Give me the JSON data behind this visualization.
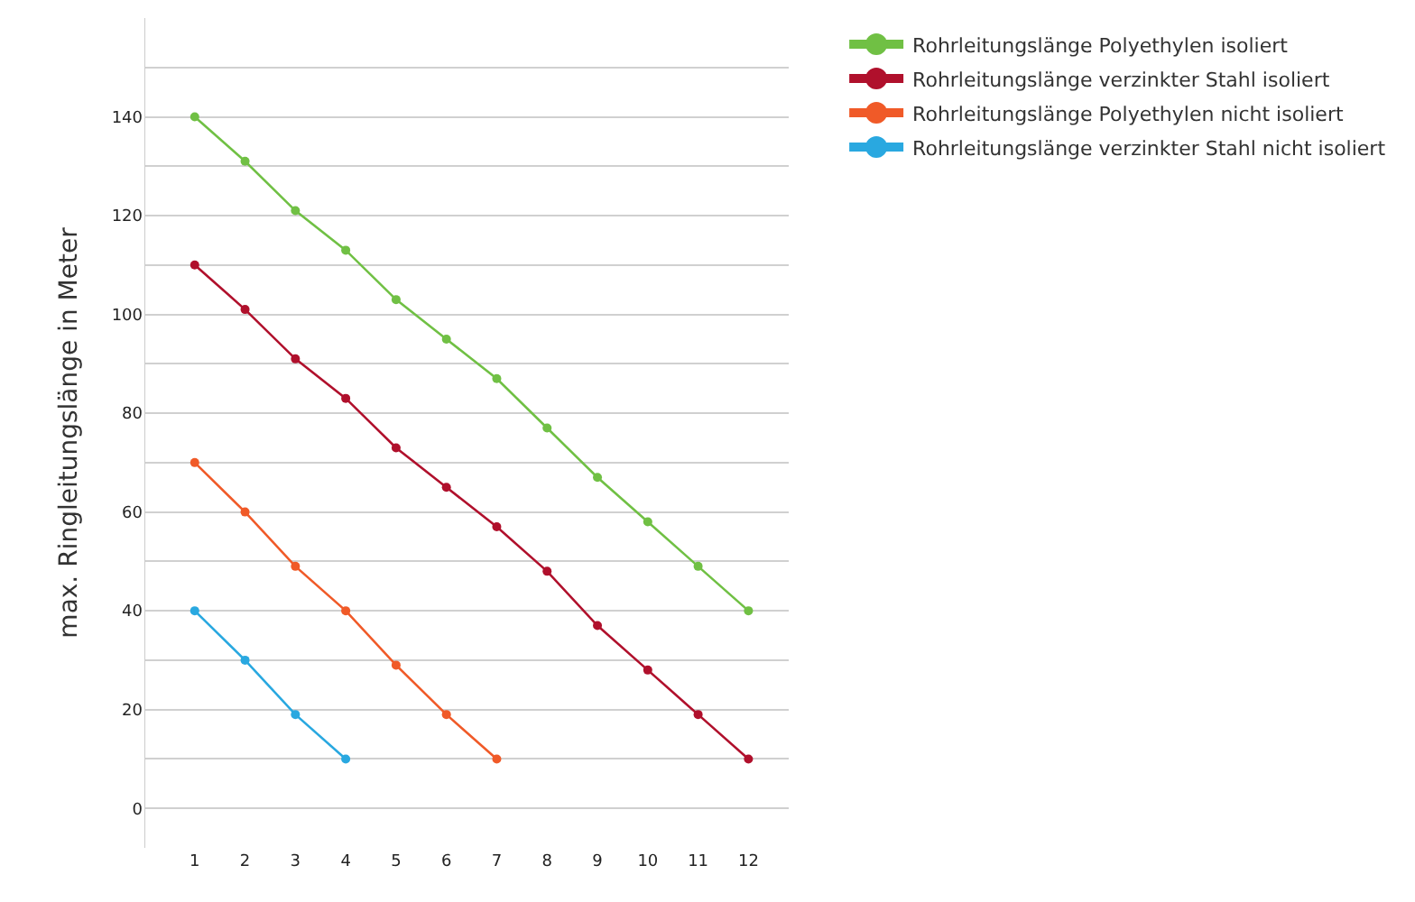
{
  "chart_data": {
    "type": "line",
    "ylabel": "max. Ringleitungslänge in Meter",
    "x": [
      1,
      2,
      3,
      4,
      5,
      6,
      7,
      8,
      9,
      10,
      11,
      12
    ],
    "xlim": [
      0,
      12.8
    ],
    "xticks": [
      1,
      2,
      3,
      4,
      5,
      6,
      7,
      8,
      9,
      10,
      11,
      12
    ],
    "ylim": [
      -8,
      160
    ],
    "yticks": [
      0,
      {
        "value": 10,
        "label": null
      },
      20,
      {
        "value": 30,
        "label": null
      },
      40,
      {
        "value": 50,
        "label": null
      },
      60,
      {
        "value": 70,
        "label": null
      },
      80,
      {
        "value": 90,
        "label": null
      },
      100,
      {
        "value": 110,
        "label": null
      },
      120,
      {
        "value": 130,
        "label": null
      },
      140,
      {
        "value": 150,
        "label": null
      }
    ],
    "grid": "y",
    "legend": "right",
    "marker": "circle",
    "line_style": "solid",
    "series": [
      {
        "name": "Rohrleitungslänge Polyethylen isoliert",
        "color": "#70c044",
        "values": [
          140,
          131,
          121,
          113,
          103,
          95,
          87,
          77,
          67,
          58,
          49,
          40
        ]
      },
      {
        "name": "Rohrleitungslänge verzinkter Stahl isoliert",
        "color": "#b0102c",
        "values": [
          110,
          101,
          91,
          83,
          73,
          65,
          57,
          48,
          37,
          28,
          19,
          10
        ]
      },
      {
        "name": "Rohrleitungslänge Polyethylen nicht isoliert",
        "color": "#f05a28",
        "x": [
          1,
          2,
          3,
          4,
          5,
          6,
          7
        ],
        "values": [
          70,
          60,
          49,
          40,
          29,
          19,
          10
        ]
      },
      {
        "name": "Rohrleitungslänge verzinkter Stahl nicht isoliert",
        "color": "#29a8e0",
        "x": [
          1,
          2,
          3,
          4
        ],
        "values": [
          40,
          30,
          19,
          10
        ]
      }
    ]
  }
}
